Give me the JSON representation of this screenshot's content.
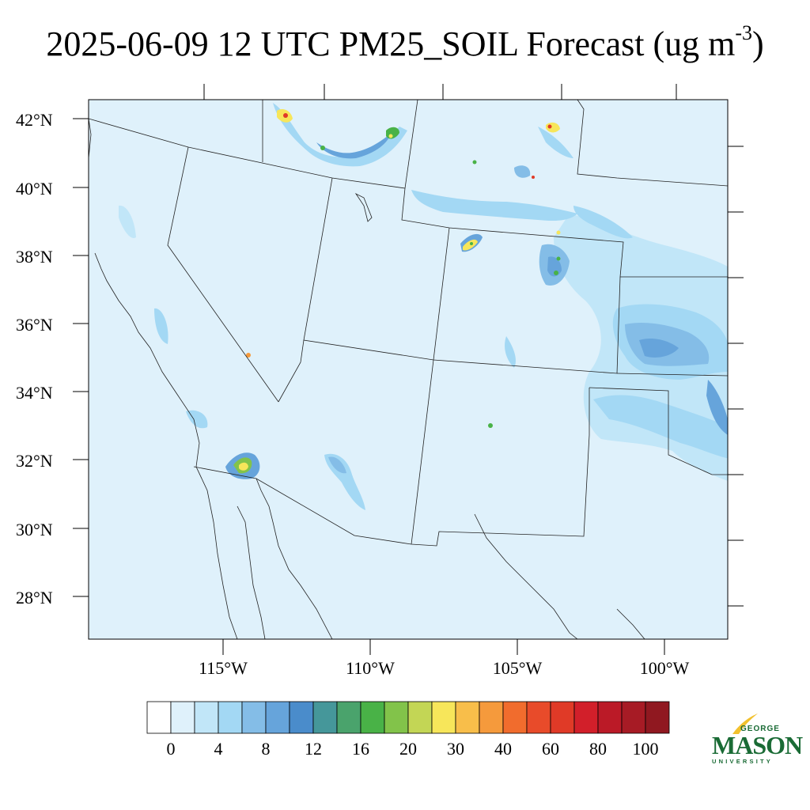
{
  "title": {
    "main": "2025-06-09 12 UTC PM25_SOIL Forecast (ug m",
    "superscript": "-3",
    "close": ")"
  },
  "lat_labels": [
    "42°N",
    "40°N",
    "38°N",
    "36°N",
    "34°N",
    "32°N",
    "30°N",
    "28°N"
  ],
  "lon_labels": [
    "115°W",
    "110°W",
    "105°W",
    "100°W"
  ],
  "colorbar": {
    "colors": [
      "#ffffff",
      "#dff1fb",
      "#c1e6f8",
      "#a3d8f4",
      "#84bde7",
      "#66a4db",
      "#4a8ccb",
      "#45979a",
      "#4aa36c",
      "#49b247",
      "#82c34a",
      "#c3d655",
      "#f7e65a",
      "#f8be4a",
      "#f59a3c",
      "#f16c2d",
      "#e84b2a",
      "#e03a27",
      "#d21f2a",
      "#bb1a27",
      "#a71b25",
      "#901820"
    ],
    "labels": [
      "0",
      "4",
      "8",
      "12",
      "16",
      "20",
      "30",
      "40",
      "60",
      "80",
      "100"
    ]
  },
  "map_colors": {
    "background": "#dff1fb",
    "level_light": "#c1e6f8",
    "level_mid": "#a3d8f4",
    "level_mid2": "#84bde7",
    "level_dark": "#66a4db",
    "level_darker": "#4a8ccb",
    "green": "#49b247",
    "yellow": "#f7e65a",
    "red": "#e03a27"
  },
  "logo": {
    "line1": "GEORGE",
    "line2": "MASON",
    "line3": "UNIVERSITY"
  }
}
